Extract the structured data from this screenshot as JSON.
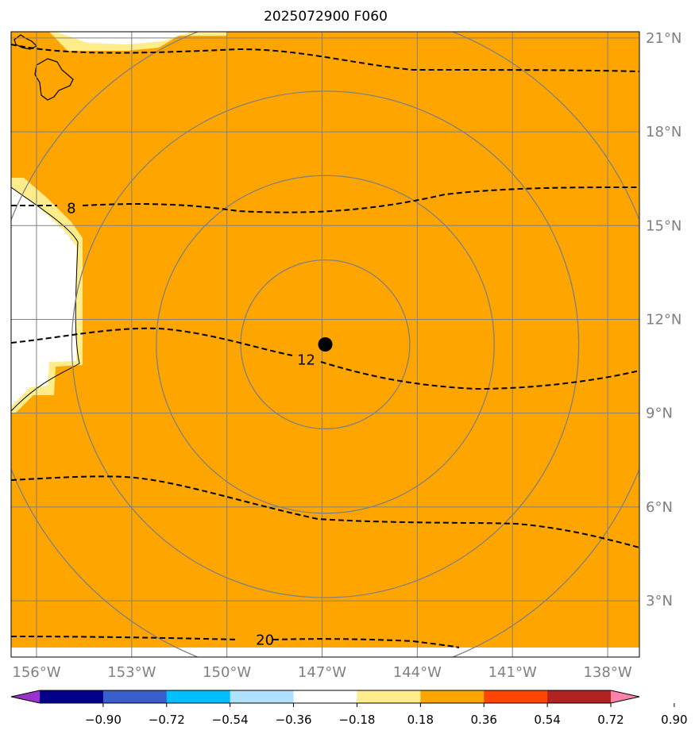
{
  "title": "2025072900 F060",
  "map": {
    "lon_range": [
      -156.8,
      -137.0
    ],
    "lat_range": [
      1.2,
      21.2
    ],
    "lon_ticks": [
      "156°W",
      "153°W",
      "150°W",
      "147°W",
      "144°W",
      "141°W",
      "138°W"
    ],
    "lon_tick_values": [
      -156,
      -153,
      -150,
      -147,
      -144,
      -141,
      -138
    ],
    "lat_ticks": [
      "21°N",
      "18°N",
      "15°N",
      "12°N",
      "9°N",
      "6°N",
      "3°N"
    ],
    "lat_tick_values": [
      21,
      18,
      15,
      12,
      9,
      6,
      3
    ],
    "fill_color": "#ffa500",
    "grid_color": "#808080",
    "center_marker": {
      "lon": -146.9,
      "lat": 11.2,
      "color": "#000000"
    },
    "range_rings_deg": [
      2.7,
      5.4,
      8.1,
      10.8
    ],
    "contour_labels": [
      {
        "text": "8",
        "lon": -154.9,
        "lat": 15.55
      },
      {
        "text": "12",
        "lon": -147.5,
        "lat": 10.7
      },
      {
        "text": "20",
        "lon": -148.8,
        "lat": 1.75
      }
    ]
  },
  "colorbar": {
    "tick_labels": [
      "−0.90",
      "−0.72",
      "−0.54",
      "−0.36",
      "−0.18",
      "0.18",
      "0.36",
      "0.54",
      "0.72",
      "0.90"
    ],
    "colors": [
      "#9932cc",
      "#00008b",
      "#3a5fcd",
      "#00bfff",
      "#b0e2ff",
      "#ffffff",
      "#ffec8b",
      "#ffa500",
      "#ff4500",
      "#b22222",
      "#ff82ab"
    ]
  }
}
